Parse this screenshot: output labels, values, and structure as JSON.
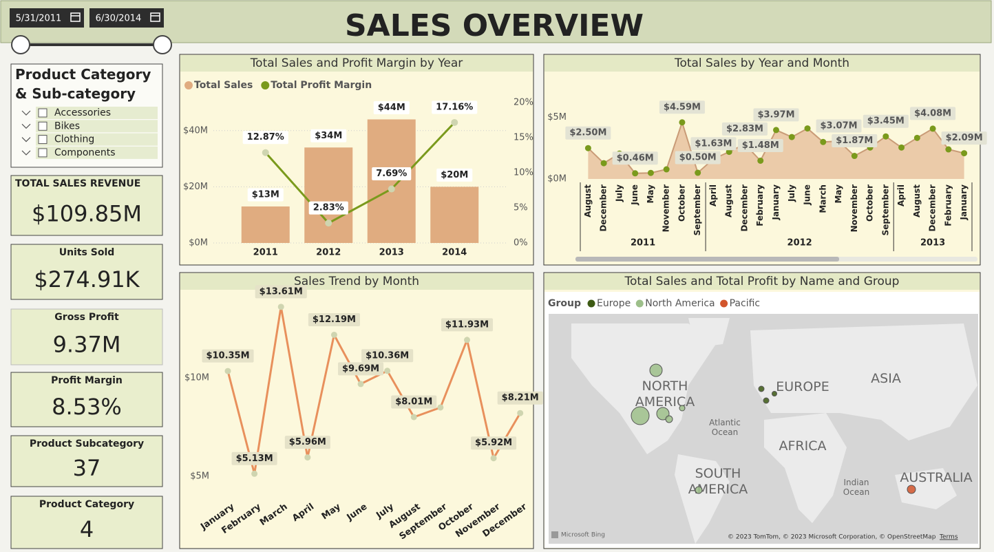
{
  "header": {
    "title": "SALES OVERVIEW",
    "date_from": "5/31/2011",
    "date_to": "6/30/2014"
  },
  "slicer": {
    "title": "Product Category & Sub-category",
    "items": [
      "Accessories",
      "Bikes",
      "Clothing",
      "Components"
    ]
  },
  "kpis": [
    {
      "label": "TOTAL SALES REVENUE",
      "value": "$109.85M"
    },
    {
      "label": "Units Sold",
      "value": "$274.91K"
    },
    {
      "label": "Gross Profit",
      "value": "9.37M"
    },
    {
      "label": "Profit Margin",
      "value": "8.53%"
    },
    {
      "label": "Product Subcategory",
      "value": "37"
    },
    {
      "label": "Product Category",
      "value": "4"
    }
  ],
  "chart_data": [
    {
      "type": "bar",
      "title": "Total Sales and Profit Margin by Year",
      "categories": [
        "2011",
        "2012",
        "2013",
        "2014"
      ],
      "series": [
        {
          "name": "Total Sales",
          "type": "bar",
          "color": "#e0ac80",
          "values": [
            13,
            34,
            44,
            20
          ],
          "value_labels": [
            "$13M",
            "$34M",
            "$44M",
            "$20M"
          ]
        },
        {
          "name": "Total Profit Margin",
          "type": "line",
          "axis": "y2",
          "color": "#7a9a1c",
          "values": [
            12.87,
            2.83,
            7.69,
            17.16
          ],
          "value_labels": [
            "12.87%",
            "2.83%",
            "7.69%",
            "17.16%"
          ]
        }
      ],
      "ylim": [
        0,
        50
      ],
      "yticks": [
        {
          "value": 0,
          "label": "$0M"
        },
        {
          "value": 20,
          "label": "$20M"
        },
        {
          "value": 40,
          "label": "$40M"
        }
      ],
      "y2lim": [
        0,
        20
      ],
      "y2ticks": [
        {
          "value": 0,
          "label": "0%"
        },
        {
          "value": 5,
          "label": "5%"
        },
        {
          "value": 10,
          "label": "10%"
        },
        {
          "value": 15,
          "label": "15%"
        },
        {
          "value": 20,
          "label": "20%"
        }
      ],
      "grid": true,
      "legend": "top-left"
    },
    {
      "type": "area",
      "title": "Total Sales by Year and Month",
      "color": "#e6bf9c",
      "line_color": "#c99b77",
      "marker_color": "#7a9a1c",
      "groups": [
        {
          "name": "2011",
          "categories": [
            "August",
            "December",
            "July",
            "June",
            "May",
            "November",
            "October",
            "September"
          ],
          "values": [
            2.5,
            1.28,
            2.06,
            0.46,
            0.49,
            0.78,
            4.59,
            0.5
          ],
          "value_labels": [
            "$2.50M",
            null,
            null,
            "$0.46M",
            null,
            null,
            "$4.59M",
            "$0.50M"
          ]
        },
        {
          "name": "2012",
          "categories": [
            "April",
            "August",
            "December",
            "February",
            "January",
            "July",
            "June",
            "March",
            "May",
            "November",
            "October",
            "September"
          ],
          "values": [
            1.63,
            2.2,
            2.83,
            1.48,
            3.97,
            3.4,
            4.1,
            3.0,
            3.07,
            1.87,
            2.55,
            3.45
          ],
          "value_labels": [
            "$1.63M",
            null,
            "$2.83M",
            "$1.48M",
            "$3.97M",
            null,
            null,
            null,
            "$3.07M",
            "$1.87M",
            null,
            "$3.45M"
          ]
        },
        {
          "name": "2013",
          "categories": [
            "April",
            "August",
            "December",
            "February",
            "January"
          ],
          "values": [
            2.55,
            3.33,
            4.08,
            2.4,
            2.09
          ],
          "value_labels": [
            null,
            null,
            "$4.08M",
            null,
            "$2.09M"
          ]
        }
      ],
      "ylim": [
        0,
        6.7
      ],
      "yticks": [
        {
          "value": 0,
          "label": "$0M"
        },
        {
          "value": 5,
          "label": "$5M"
        }
      ],
      "grid": false
    },
    {
      "type": "line",
      "title": "Sales Trend by Month",
      "color": "#e8905c",
      "marker_color": "#cfd5b0",
      "categories": [
        "January",
        "February",
        "March",
        "April",
        "May",
        "June",
        "July",
        "August",
        "September",
        "October",
        "November",
        "December"
      ],
      "values": [
        10.35,
        5.13,
        13.61,
        5.96,
        12.19,
        9.69,
        10.36,
        8.01,
        8.5,
        11.93,
        5.92,
        8.21
      ],
      "value_labels": [
        "$10.35M",
        "$5.13M",
        "$13.61M",
        "$5.96M",
        "$12.19M",
        "$9.69M",
        "$10.36M",
        "$8.01M",
        null,
        "$11.93M",
        "$5.92M",
        "$8.21M"
      ],
      "ylim": [
        4,
        14.2
      ],
      "yticks": [
        {
          "value": 5,
          "label": "$5M"
        },
        {
          "value": 10,
          "label": "$10M"
        }
      ],
      "grid": false
    },
    {
      "type": "map",
      "title": "Total Sales and Total Profit by Name and Group",
      "legend_title": "Group",
      "series": [
        {
          "name": "Europe",
          "color": "#3d5a14"
        },
        {
          "name": "North America",
          "color": "#9dbf8a"
        },
        {
          "name": "Pacific",
          "color": "#d2552c"
        }
      ],
      "labels": [
        "NORTH AMERICA",
        "EUROPE",
        "ASIA",
        "AFRICA",
        "SOUTH AMERICA",
        "AUSTRALIA",
        "Atlantic Ocean",
        "Indian Ocean"
      ],
      "provider": "Microsoft Bing",
      "attribution": "© 2023 TomTom, © 2023 Microsoft Corporation, © OpenStreetMap",
      "terms": "Terms"
    }
  ]
}
